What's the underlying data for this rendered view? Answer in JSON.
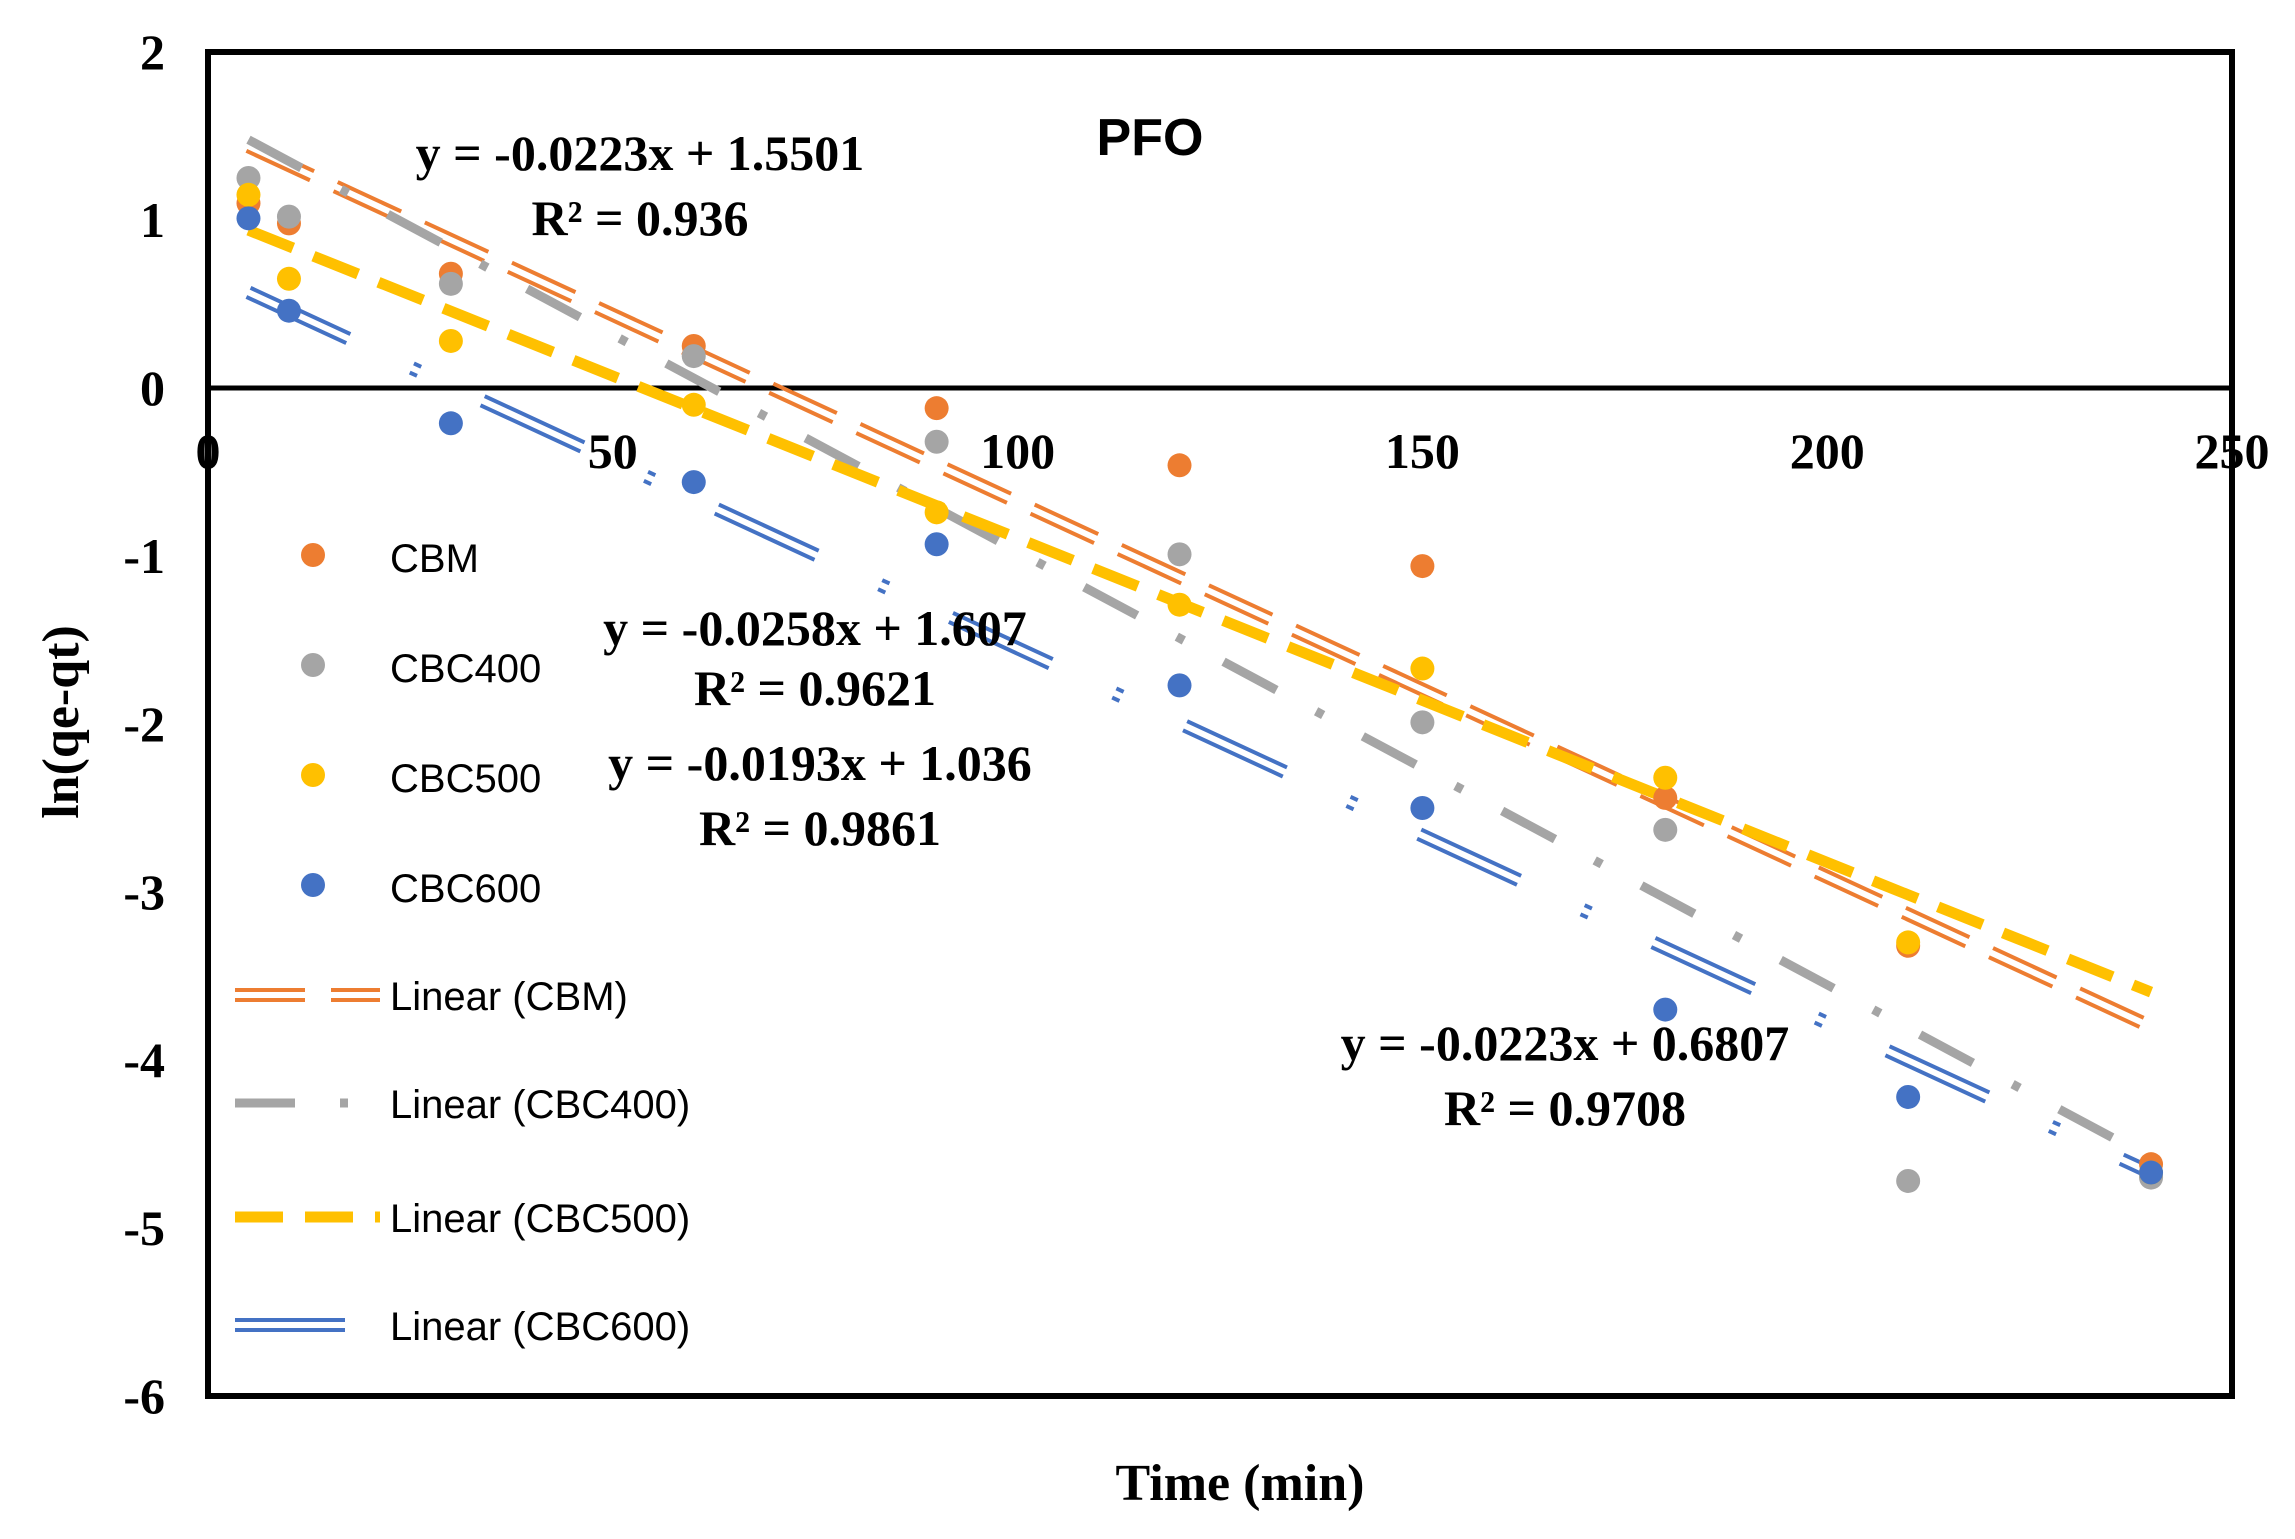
{
  "chart_data": {
    "type": "scatter",
    "title": "PFO",
    "xlabel": "Time (min)",
    "ylabel": "ln(qe-qt)",
    "xlim": [
      0,
      250
    ],
    "ylim": [
      -6,
      2
    ],
    "xticks": [
      0,
      50,
      100,
      150,
      200,
      250
    ],
    "yticks": [
      -6,
      -5,
      -4,
      -3,
      -2,
      -1,
      0,
      1,
      2
    ],
    "x": [
      5,
      10,
      30,
      60,
      90,
      120,
      150,
      180,
      210,
      240
    ],
    "series": [
      {
        "name": "CBM",
        "color": "#ED7D31",
        "values": [
          1.1,
          0.98,
          0.68,
          0.25,
          -0.12,
          -0.46,
          -1.06,
          -2.44,
          -3.32,
          -4.62
        ]
      },
      {
        "name": "CBC400",
        "color": "#A5A5A5",
        "values": [
          1.25,
          1.02,
          0.62,
          0.19,
          -0.32,
          -0.99,
          -1.99,
          -2.63,
          -4.72,
          -4.7
        ]
      },
      {
        "name": "CBC500",
        "color": "#FFC000",
        "values": [
          1.15,
          0.65,
          0.28,
          -0.1,
          -0.74,
          -1.29,
          -1.67,
          -2.32,
          -3.3,
          -4.67
        ]
      },
      {
        "name": "CBC600",
        "color": "#4472C4",
        "values": [
          1.01,
          0.46,
          -0.21,
          -0.56,
          -0.93,
          -1.77,
          -2.5,
          -3.7,
          -4.22,
          -4.67
        ]
      }
    ],
    "trendlines": [
      {
        "name": "Linear (CBM)",
        "color": "#ED7D31",
        "style": "double",
        "slope": -0.0223,
        "intercept": 1.5501,
        "x_range": [
          5,
          240
        ]
      },
      {
        "name": "Linear (CBC400)",
        "color": "#A5A5A5",
        "style": "dash-dot",
        "slope": -0.0258,
        "intercept": 1.607,
        "x_range": [
          5,
          240
        ]
      },
      {
        "name": "Linear (CBC500)",
        "color": "#FFC000",
        "style": "dash",
        "slope": -0.0193,
        "intercept": 1.036,
        "x_range": [
          5,
          240
        ]
      },
      {
        "name": "Linear (CBC600)",
        "color": "#4472C4",
        "style": "double-dash-dot",
        "slope": -0.0223,
        "intercept": 0.6807,
        "x_range": [
          5,
          240
        ]
      }
    ],
    "annotations": [
      {
        "eq": "y = -0.0223x + 1.5501",
        "r2": "R² = 0.936"
      },
      {
        "eq": "y = -0.0258x + 1.607",
        "r2": "R² = 0.9621"
      },
      {
        "eq": "y = -0.0193x + 1.036",
        "r2": "R² = 0.9861"
      },
      {
        "eq": "y = -0.0223x + 0.6807",
        "r2": "R² = 0.9708"
      }
    ],
    "legend_position": "left-inside"
  }
}
